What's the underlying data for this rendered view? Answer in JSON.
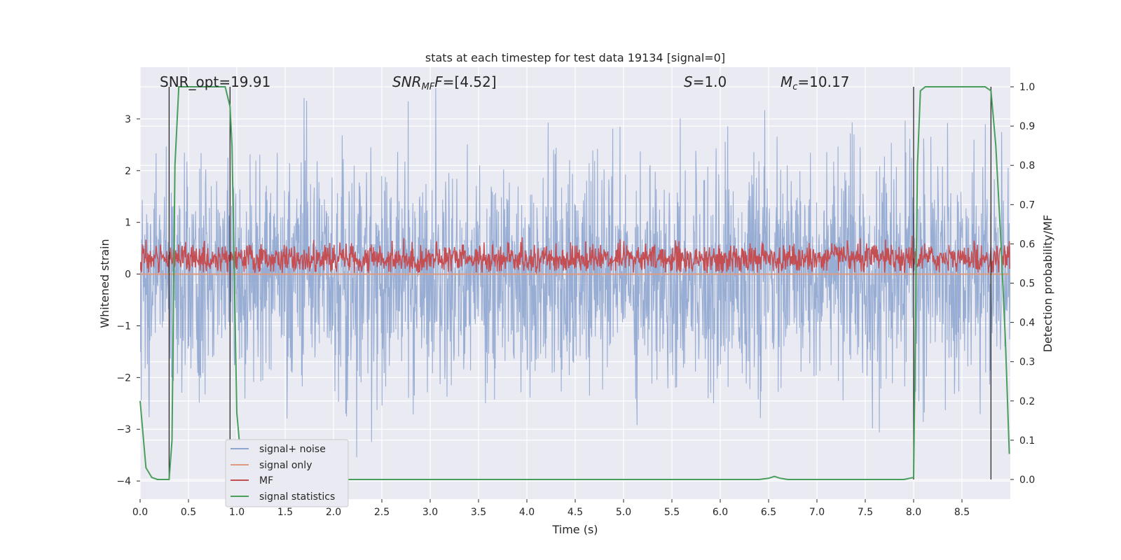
{
  "chart_data": {
    "type": "line",
    "title": "stats at each timestep for test data 19134 [signal=0]",
    "annotations": {
      "snr_opt": "SNR_opt=19.91",
      "snr_mf_base": "SNR",
      "snr_mf_sub": "MF",
      "snr_mf_rest": "=[4.52]",
      "s_base": "S",
      "s_rest": "=1.0",
      "mc_base": "M",
      "mc_sub": "c",
      "mc_rest": "=10.17"
    },
    "xlabel": "Time (s)",
    "ylabel_left": "Whitened strain",
    "ylabel_right": "Detection probability/MF",
    "xlim": [
      0,
      9.0
    ],
    "ylim_left": [
      -4.35,
      4.0
    ],
    "ylim_right": [
      -0.05,
      1.05
    ],
    "xticks": [
      0.0,
      0.5,
      1.0,
      1.5,
      2.0,
      2.5,
      3.0,
      3.5,
      4.0,
      4.5,
      5.0,
      5.5,
      6.0,
      6.5,
      7.0,
      7.5,
      8.0,
      8.5
    ],
    "xtick_labels": [
      "0.0",
      "0.5",
      "1.0",
      "1.5",
      "2.0",
      "2.5",
      "3.0",
      "3.5",
      "4.0",
      "4.5",
      "5.0",
      "5.5",
      "6.0",
      "6.5",
      "7.0",
      "7.5",
      "8.0",
      "8.5"
    ],
    "yticks_left": [
      3,
      2,
      1,
      0,
      -1,
      -2,
      -3,
      -4
    ],
    "ytick_labels_left": [
      "3",
      "2",
      "1",
      "0",
      "−1",
      "−2",
      "−3",
      "−4"
    ],
    "yticks_right": [
      1.0,
      0.9,
      0.8,
      0.7,
      0.6,
      0.5,
      0.4,
      0.3,
      0.2,
      0.1,
      0.0
    ],
    "ytick_labels_right": [
      "1.0",
      "0.9",
      "0.8",
      "0.7",
      "0.6",
      "0.5",
      "0.4",
      "0.3",
      "0.2",
      "0.1",
      "0.0"
    ],
    "grid": true,
    "legend_placement": "lower-left",
    "series": [
      {
        "name": "signal+ noise",
        "axis": "left",
        "color": "#8fa6cf",
        "description_values": "whitened strain noise, roughly within [-3.7, 3.6] over the full 0–9 s span"
      },
      {
        "name": "signal only",
        "axis": "left",
        "color": "#dd9a7e",
        "values_constant": 0.0
      },
      {
        "name": "MF",
        "axis": "left",
        "color": "#c44e52",
        "values_range": [
          0.0,
          1.0
        ]
      },
      {
        "name": "signal statistics",
        "axis": "right",
        "color": "#4a9e5c",
        "x": [
          0.0,
          0.06,
          0.12,
          0.18,
          0.24,
          0.3,
          0.33,
          0.36,
          0.4,
          0.5,
          0.6,
          0.7,
          0.8,
          0.88,
          0.93,
          0.95,
          1.0,
          1.05,
          1.1,
          1.5,
          2.0,
          3.0,
          4.0,
          5.0,
          6.0,
          6.4,
          6.5,
          6.56,
          6.62,
          6.7,
          7.0,
          7.5,
          7.9,
          8.0,
          8.04,
          8.07,
          8.12,
          8.2,
          8.4,
          8.6,
          8.74,
          8.8,
          8.85,
          8.9,
          8.95,
          8.99
        ],
        "y": [
          0.2,
          0.03,
          0.005,
          0.0,
          0.0,
          0.0,
          0.1,
          0.8,
          1.0,
          1.0,
          1.0,
          1.0,
          1.0,
          1.0,
          0.95,
          0.85,
          0.17,
          0.03,
          0.0,
          0.0,
          0.0,
          0.0,
          0.0,
          0.0,
          0.0,
          0.0,
          0.003,
          0.008,
          0.003,
          0.0,
          0.0,
          0.0,
          0.0,
          0.005,
          0.8,
          0.99,
          1.0,
          1.0,
          1.0,
          1.0,
          1.0,
          0.99,
          0.85,
          0.62,
          0.35,
          0.065
        ]
      }
    ],
    "vertical_markers_x": [
      0.3,
      0.93,
      8.0,
      8.8
    ]
  },
  "colors": {
    "axes_bg": "#eaeaf2",
    "grid": "#ffffff",
    "marker_line": "#2a2a2a"
  }
}
